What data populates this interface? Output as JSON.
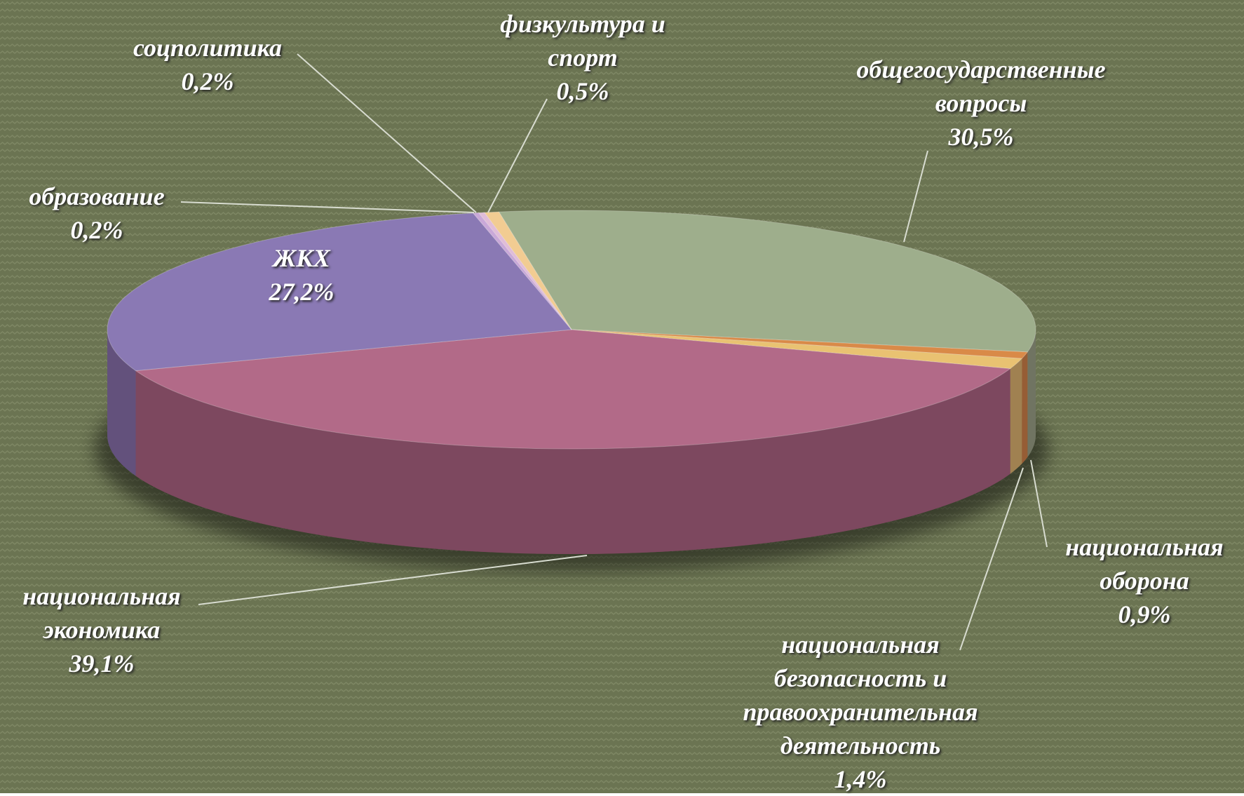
{
  "chart_data": {
    "type": "pie3d",
    "categories": [
      "общегосударственные вопросы",
      "национальная оборона",
      "национальная безопасность и правоохранительная деятельность",
      "национальная экономика",
      "ЖКХ",
      "образование",
      "соцполитика",
      "физкультура и спорт"
    ],
    "values": [
      30.5,
      0.9,
      1.4,
      39.1,
      27.2,
      0.2,
      0.2,
      0.5
    ],
    "value_labels": [
      "30,5%",
      "0,9%",
      "1,4%",
      "39,1%",
      "27,2%",
      "0,2%",
      "0,2%",
      "0,5%"
    ],
    "colors": [
      "#9eae8c",
      "#d98a48",
      "#e9c272",
      "#b26a88",
      "#8a79b4",
      "#c9a8d8",
      "#e0bcd8",
      "#f2cc92"
    ]
  }
}
